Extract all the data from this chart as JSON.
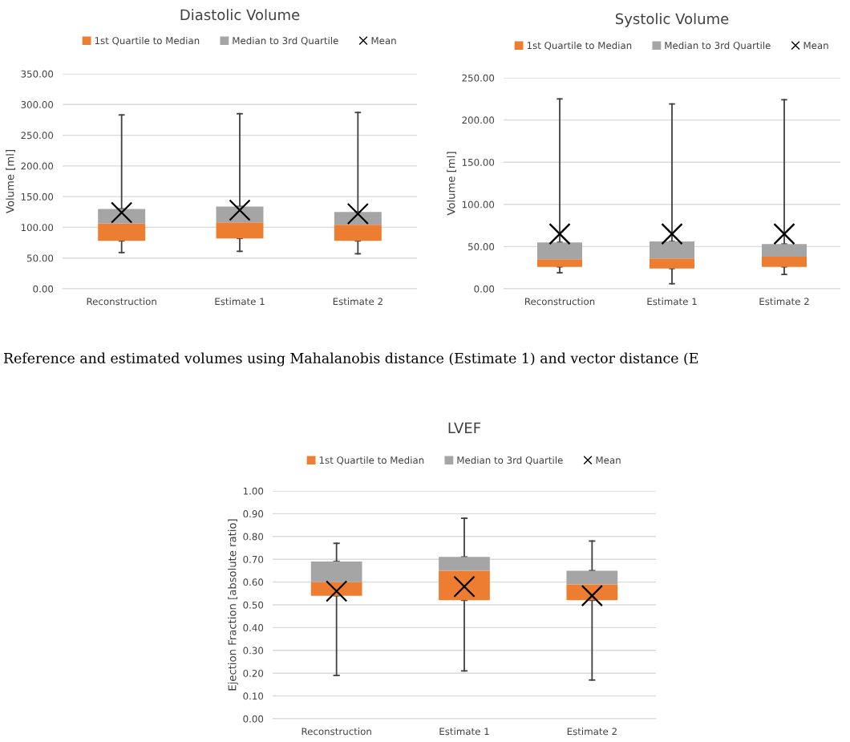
{
  "chart_data": [
    {
      "type": "bar",
      "title": "Diastolic Volume",
      "ylabel": "Volume [ml]",
      "categories": [
        "Reconstruction",
        "Estimate 1",
        "Estimate 2"
      ],
      "series": [
        {
          "name": "1st Quartile to Median",
          "color": "#ed7d31",
          "base": [
            78,
            82,
            78
          ],
          "values": [
            28,
            26,
            26
          ],
          "errors": [
            [
              59,
              78
            ],
            [
              61,
              82
            ],
            [
              57,
              78
            ]
          ]
        },
        {
          "name": "Median to 3rd Quartile",
          "color": "#a5a5a5",
          "base": [
            106,
            108,
            104
          ],
          "values": [
            24,
            26,
            21
          ],
          "errors": [
            [
              130,
              283
            ],
            [
              134,
              285
            ],
            [
              125,
              287
            ]
          ]
        },
        {
          "name": "Mean",
          "color": "#000000",
          "type": "scatter",
          "marker": "cross",
          "values": [
            124,
            128,
            122
          ]
        }
      ],
      "ylim": [
        0,
        350
      ],
      "yticks": [
        {
          "value": 0,
          "label": "0.00"
        },
        {
          "value": 50,
          "label": "50.00"
        },
        {
          "value": 100,
          "label": "100.00"
        },
        {
          "value": 150,
          "label": "150.00"
        },
        {
          "value": 200,
          "label": "200.00"
        },
        {
          "value": 250,
          "label": "250.00"
        },
        {
          "value": 300,
          "label": "300.00"
        },
        {
          "value": 350,
          "label": "350.00"
        }
      ],
      "grid": "y",
      "legend": "top",
      "annotations": [
        "Reference and estimated volumes using Mahalanobis distance (Estimate 1) and vector distance (E"
      ]
    },
    {
      "type": "bar",
      "title": "Systolic Volume",
      "ylabel": "Volume [ml]",
      "categories": [
        "Reconstruction",
        "Estimate 1",
        "Estimate 2"
      ],
      "series": [
        {
          "name": "1st Quartile to Median",
          "color": "#ed7d31",
          "base": [
            26,
            24,
            26
          ],
          "values": [
            9,
            12,
            12
          ],
          "errors": [
            [
              19,
              26
            ],
            [
              6,
              24
            ],
            [
              17,
              26
            ]
          ]
        },
        {
          "name": "Median to 3rd Quartile",
          "color": "#a5a5a5",
          "base": [
            35,
            36,
            38
          ],
          "values": [
            20,
            20,
            15
          ],
          "errors": [
            [
              55,
              225
            ],
            [
              56,
              219
            ],
            [
              53,
              224
            ]
          ]
        },
        {
          "name": "Mean",
          "color": "#000000",
          "type": "scatter",
          "marker": "cross",
          "values": [
            65,
            65,
            65
          ]
        }
      ],
      "ylim": [
        0,
        250
      ],
      "yticks": [
        {
          "value": 0,
          "label": "0.00"
        },
        {
          "value": 50,
          "label": "50.00"
        },
        {
          "value": 100,
          "label": "100.00"
        },
        {
          "value": 150,
          "label": "150.00"
        },
        {
          "value": 200,
          "label": "200.00"
        },
        {
          "value": 250,
          "label": "250.00"
        }
      ],
      "grid": "y",
      "legend": "top"
    },
    {
      "type": "bar",
      "title": "LVEF",
      "ylabel": "Ejection Fraction [absolute ratio]",
      "categories": [
        "Reconstruction",
        "Estimate 1",
        "Estimate 2"
      ],
      "series": [
        {
          "name": "1st Quartile to Median",
          "color": "#ed7d31",
          "base": [
            0.54,
            0.52,
            0.52
          ],
          "values": [
            0.06,
            0.13,
            0.07
          ],
          "errors": [
            [
              0.19,
              0.54
            ],
            [
              0.21,
              0.52
            ],
            [
              0.17,
              0.52
            ]
          ]
        },
        {
          "name": "Median to 3rd Quartile",
          "color": "#a5a5a5",
          "base": [
            0.6,
            0.65,
            0.59
          ],
          "values": [
            0.09,
            0.06,
            0.06
          ],
          "errors": [
            [
              0.69,
              0.77
            ],
            [
              0.71,
              0.88
            ],
            [
              0.65,
              0.78
            ]
          ]
        },
        {
          "name": "Mean",
          "color": "#000000",
          "type": "scatter",
          "marker": "cross",
          "values": [
            0.56,
            0.58,
            0.54
          ]
        }
      ],
      "ylim": [
        0,
        1
      ],
      "yticks": [
        {
          "value": 0,
          "label": "0.00"
        },
        {
          "value": 0.1,
          "label": "0.10"
        },
        {
          "value": 0.2,
          "label": "0.20"
        },
        {
          "value": 0.3,
          "label": "0.30"
        },
        {
          "value": 0.4,
          "label": "0.40"
        },
        {
          "value": 0.5,
          "label": "0.50"
        },
        {
          "value": 0.6,
          "label": "0.60"
        },
        {
          "value": 0.7,
          "label": "0.70"
        },
        {
          "value": 0.8,
          "label": "0.80"
        },
        {
          "value": 0.9,
          "label": "0.90"
        },
        {
          "value": 1,
          "label": "1.00"
        }
      ],
      "grid": "y",
      "legend": "top"
    }
  ]
}
